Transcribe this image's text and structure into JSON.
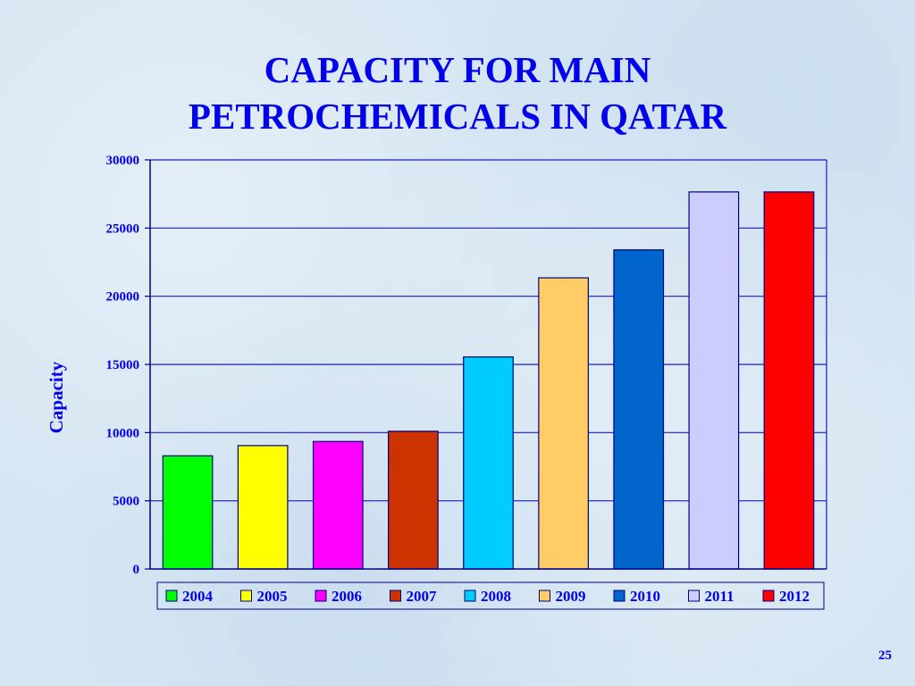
{
  "slide": {
    "title_line1": "CAPACITY FOR MAIN",
    "title_line2": "PETROCHEMICALS IN QATAR",
    "page_number": "25"
  },
  "colors": {
    "text": "#0000ee",
    "gridline": "#1a1acc",
    "axis": "#000080"
  },
  "chart_data": {
    "type": "bar",
    "title": "CAPACITY FOR MAIN PETROCHEMICALS IN QATAR",
    "xlabel": "",
    "ylabel": "Capacity",
    "ylim": [
      0,
      30000
    ],
    "yticks": [
      0,
      5000,
      10000,
      15000,
      20000,
      25000,
      30000
    ],
    "grid": true,
    "legend_position": "bottom",
    "series": [
      {
        "name": "2004",
        "value": 8300,
        "color": "#00ff00"
      },
      {
        "name": "2005",
        "value": 9050,
        "color": "#ffff00"
      },
      {
        "name": "2006",
        "value": 9350,
        "color": "#ff00ff"
      },
      {
        "name": "2007",
        "value": 10100,
        "color": "#cc3300"
      },
      {
        "name": "2008",
        "value": 15550,
        "color": "#00ccff"
      },
      {
        "name": "2009",
        "value": 21350,
        "color": "#ffcc66"
      },
      {
        "name": "2010",
        "value": 23400,
        "color": "#0066cc"
      },
      {
        "name": "2011",
        "value": 27650,
        "color": "#ccccff"
      },
      {
        "name": "2012",
        "value": 27650,
        "color": "#ff0000"
      }
    ]
  }
}
